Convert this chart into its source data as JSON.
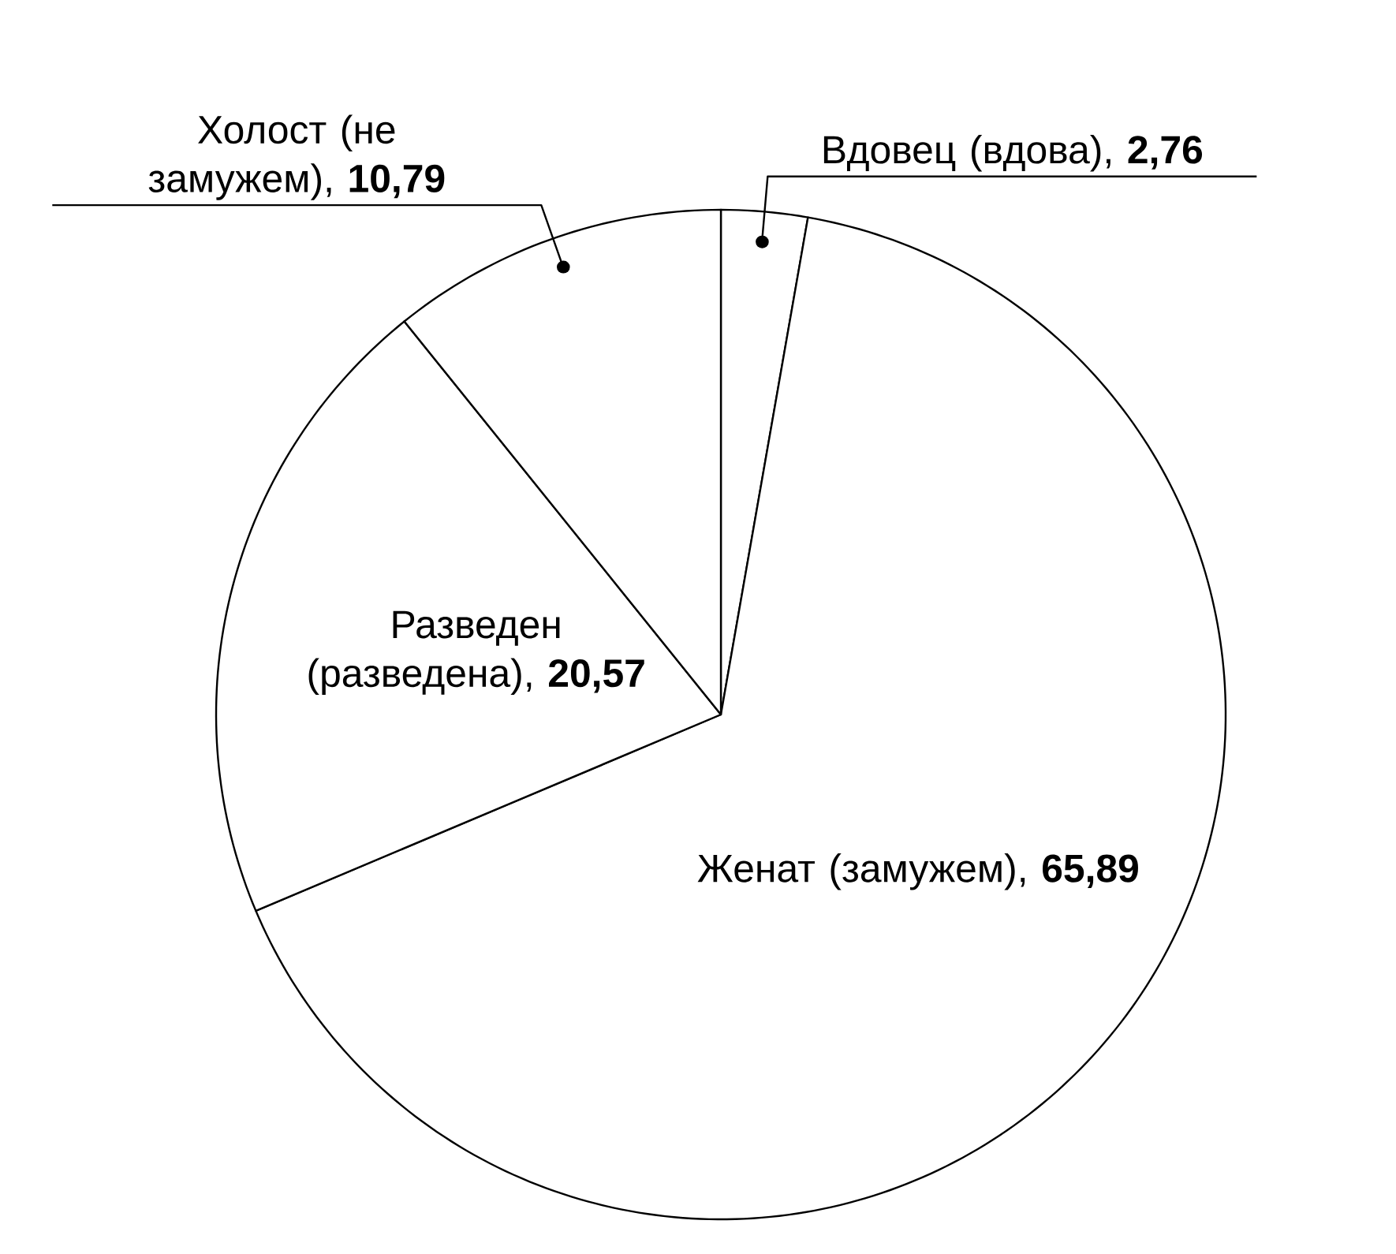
{
  "chart_data": {
    "type": "pie",
    "categories": [
      "Вдовец (вдова)",
      "Женат (замужем)",
      "Разведен (разведена)",
      "Холост (не замужем)"
    ],
    "values": [
      2.76,
      65.89,
      20.57,
      10.79
    ],
    "value_labels": [
      ", **2,76**",
      ", **65,89**",
      ", **20,57**",
      ", **10,79**"
    ],
    "colors": [
      "#ffffff",
      "#ffffff",
      "#ffffff",
      "#ffffff"
    ]
  }
}
